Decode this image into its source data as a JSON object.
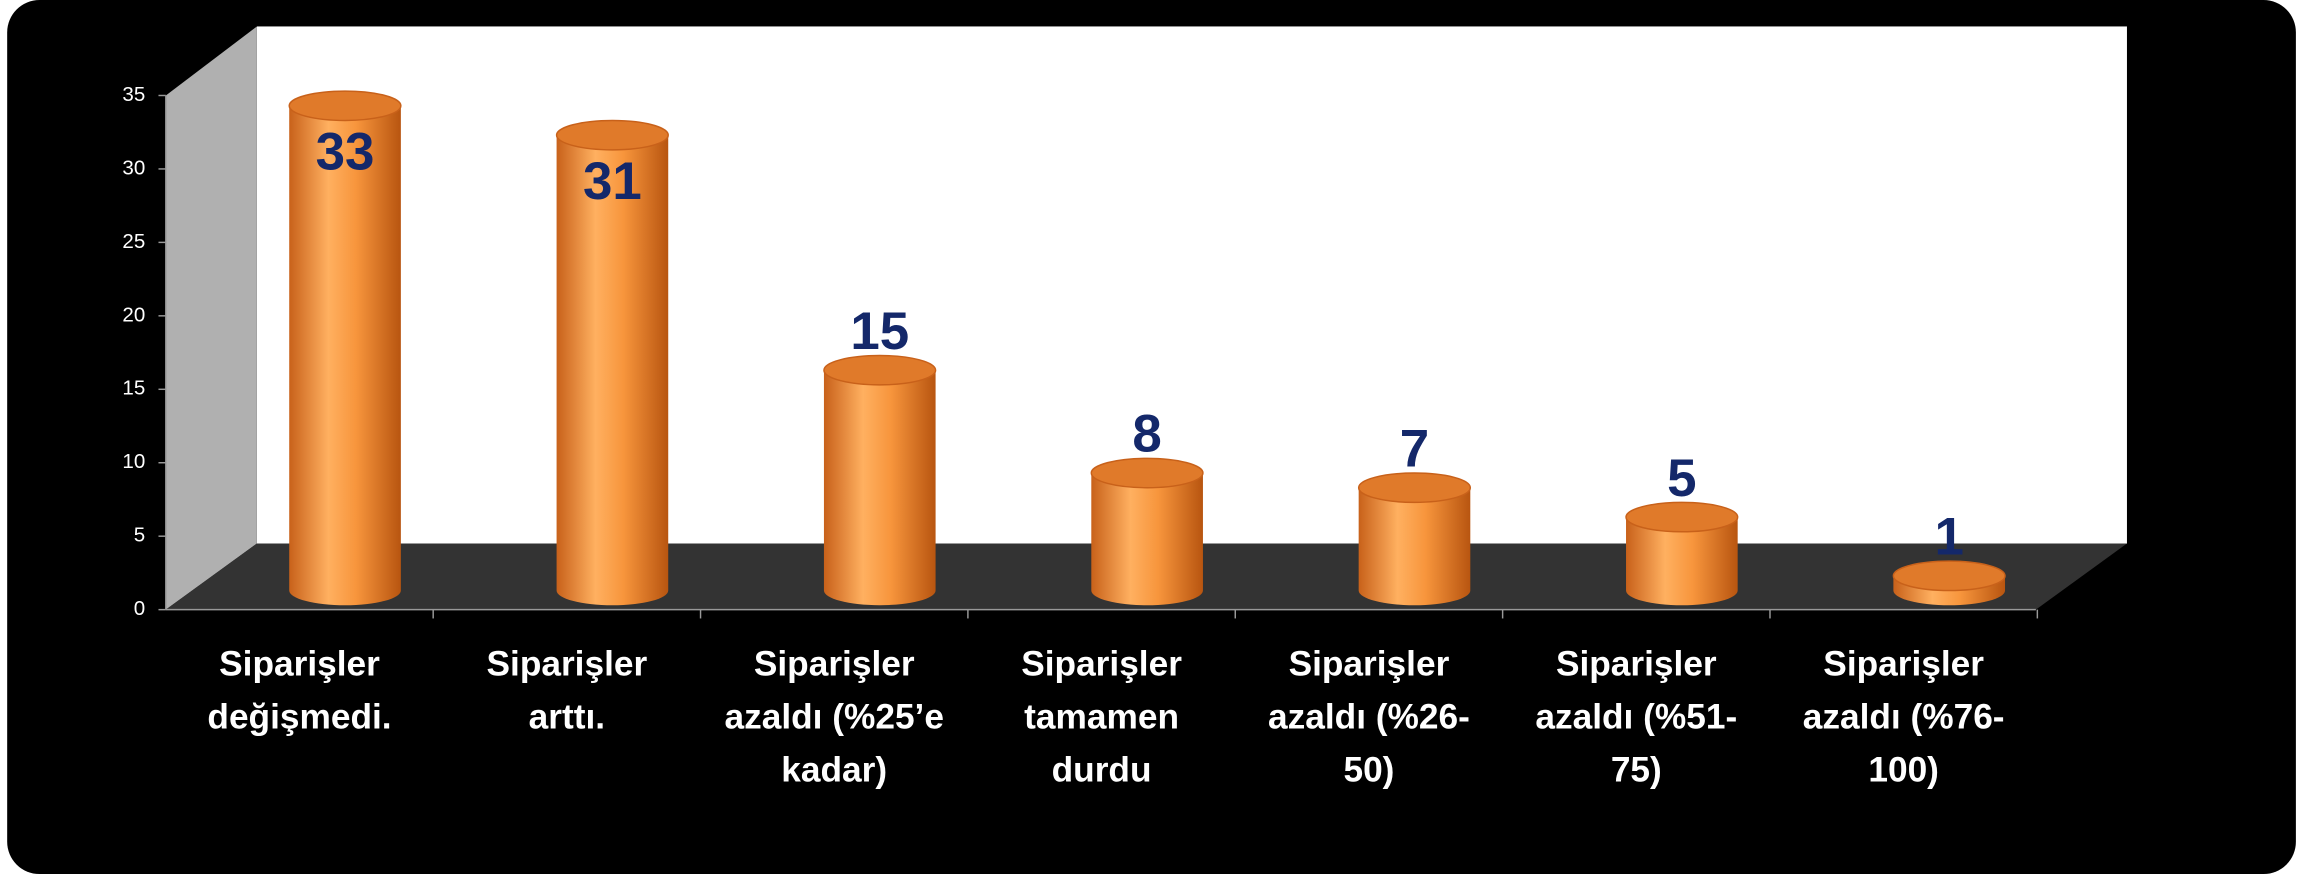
{
  "chart_data": {
    "type": "bar",
    "categories": [
      "Siparişler değişmedi.",
      "Siparişler arttı.",
      "Siparişler azaldı (%25’e kadar)",
      "Siparişler tamamen durdu",
      "Siparişler azaldı (%26-50)",
      "Siparişler azaldı (%51-75)",
      "Siparişler azaldı (%76-100)"
    ],
    "values": [
      33,
      31,
      15,
      8,
      7,
      5,
      1
    ],
    "color": "#f7953c",
    "ylim": [
      0,
      35
    ],
    "yticks": [
      0,
      5,
      10,
      15,
      20,
      25,
      30,
      35
    ],
    "grid": false
  }
}
